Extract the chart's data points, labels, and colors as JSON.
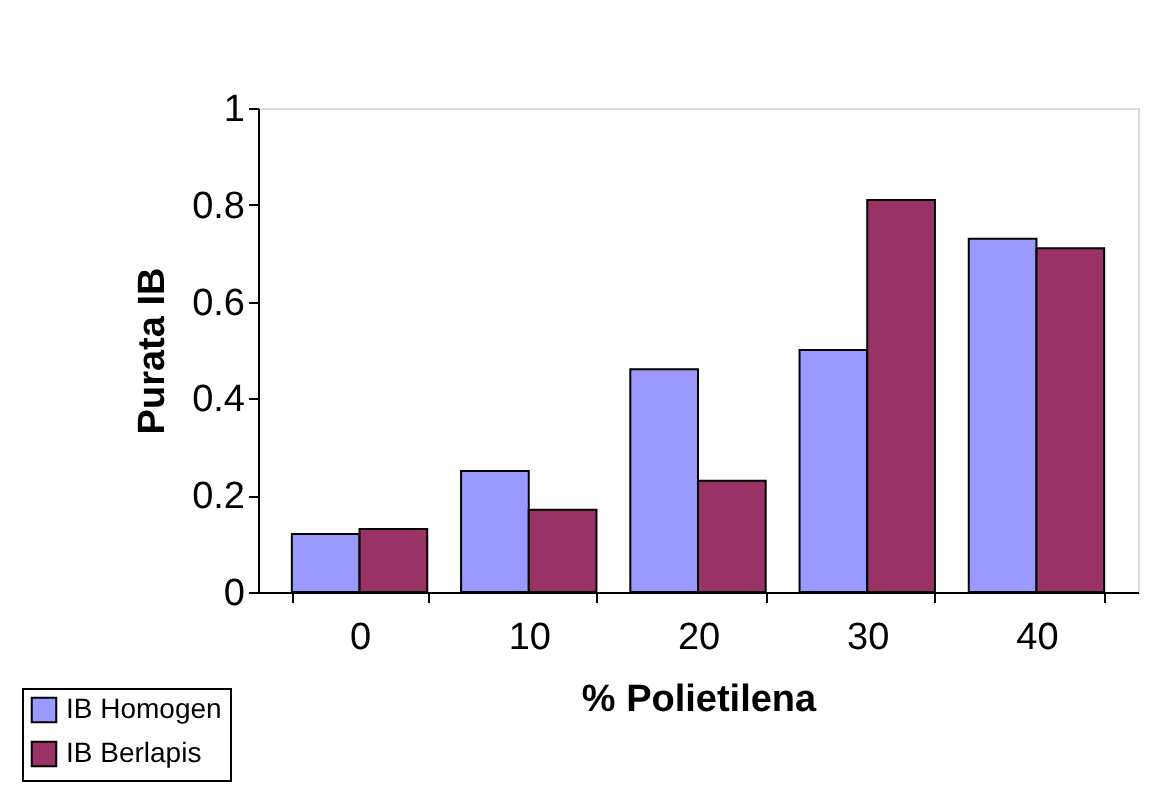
{
  "chart_data": {
    "type": "bar",
    "xlabel": "% Polietilena",
    "ylabel": "Purata IB",
    "categories": [
      "0",
      "10",
      "20",
      "30",
      "40"
    ],
    "series": [
      {
        "name": "IB Homogen",
        "color": "#9999ff",
        "values": [
          0.12,
          0.25,
          0.46,
          0.5,
          0.73
        ]
      },
      {
        "name": "IB Berlapis",
        "color": "#993366",
        "values": [
          0.13,
          0.17,
          0.23,
          0.81,
          0.71
        ]
      }
    ],
    "ylim": [
      0,
      1
    ],
    "yticks": [
      0,
      0.2,
      0.4,
      0.6,
      0.8,
      1
    ],
    "grid": false,
    "legend": "bottom left"
  }
}
